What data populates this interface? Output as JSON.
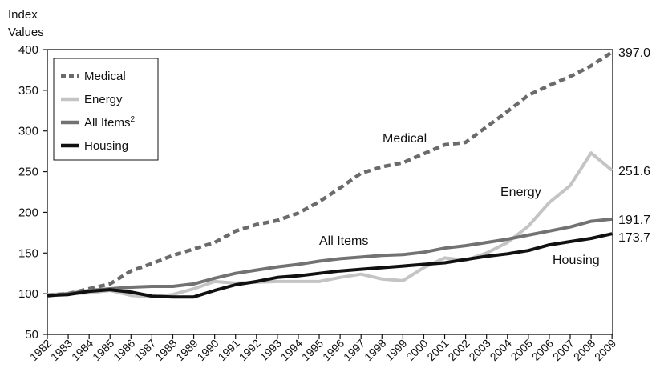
{
  "chart_data": {
    "type": "line",
    "ylabel": "Index\nValues",
    "ylabel_lines": [
      "Index",
      "Values"
    ],
    "ylim": [
      50,
      400
    ],
    "yticks": [
      50,
      100,
      150,
      200,
      250,
      300,
      350,
      400
    ],
    "x": [
      "1982",
      "1983",
      "1984",
      "1985",
      "1986",
      "1987",
      "1988",
      "1989",
      "1990",
      "1991",
      "1992",
      "1993",
      "1994",
      "1995",
      "1996",
      "1997",
      "1998",
      "1999",
      "2000",
      "2001",
      "2002",
      "2003",
      "2004",
      "2005",
      "2006",
      "2007",
      "2008",
      "2009"
    ],
    "grid": false,
    "legend_position": "top-left",
    "series": [
      {
        "name": "Medical",
        "legend_label": "Medical",
        "style": "dashed",
        "color": "#6b6b6b",
        "values": [
          98,
          100,
          106,
          112,
          128,
          137,
          147,
          155,
          163,
          177,
          185,
          190,
          199,
          213,
          230,
          248,
          256,
          261,
          272,
          283,
          286,
          305,
          324,
          344,
          356,
          367,
          380,
          397.0
        ],
        "label": "Medical",
        "end_label": "397.0"
      },
      {
        "name": "Energy",
        "legend_label": "Energy",
        "style": "solid",
        "color": "#c4c4c4",
        "values": [
          99,
          100,
          101,
          104,
          98,
          96,
          99,
          106,
          115,
          113,
          114,
          115,
          115,
          115,
          120,
          124,
          118,
          116,
          132,
          144,
          141,
          150,
          163,
          183,
          212,
          233,
          273,
          251.6
        ],
        "label": "Energy",
        "end_label": "251.6"
      },
      {
        "name": "All Items",
        "legend_label": "All Items²",
        "style": "solid",
        "color": "#727272",
        "values": [
          97,
          100,
          104,
          106,
          108,
          109,
          109,
          112,
          119,
          125,
          129,
          133,
          136,
          140,
          143,
          145,
          147,
          148,
          151,
          156,
          159,
          163,
          167,
          172,
          177,
          182,
          189,
          191.7
        ],
        "label": "All Items",
        "end_label": "191.7"
      },
      {
        "name": "Housing",
        "legend_label": "Housing",
        "style": "solid",
        "color": "#111111",
        "values": [
          98,
          99,
          103,
          105,
          102,
          97,
          96,
          96,
          104,
          111,
          115,
          120,
          122,
          125,
          128,
          130,
          132,
          134,
          136,
          138,
          142,
          146,
          149,
          153,
          160,
          164,
          168,
          173.7
        ],
        "label": "Housing",
        "end_label": "173.7"
      }
    ]
  }
}
